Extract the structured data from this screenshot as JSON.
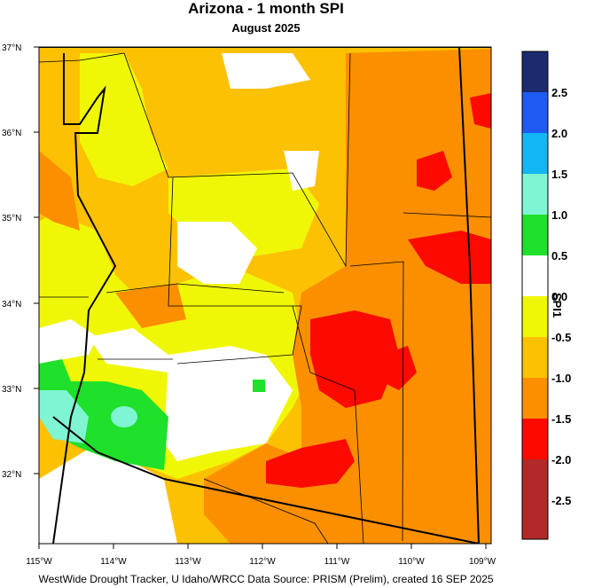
{
  "title": "Arizona - 1 month SPI",
  "subtitle": "August 2025",
  "footer": "WestWide Drought Tracker, U Idaho/WRCC Data Source: PRISM (Prelim), created 16 SEP 2025",
  "colorbar": {
    "label": "SPI1",
    "ticks": [
      "2.5",
      "2.0",
      "1.5",
      "1.0",
      "0.5",
      "0.0",
      "-0.5",
      "-1.0",
      "-1.5",
      "-2.0",
      "-2.5"
    ],
    "colors": [
      "#1c2a6e",
      "#1f5bf0",
      "#12b6f2",
      "#7ff5d4",
      "#1fe02a",
      "#ffffff",
      "#f0f706",
      "#fcc102",
      "#fb8f00",
      "#fb0a00",
      "#b02a2a"
    ]
  },
  "axes": {
    "lat_labels": [
      "37°N",
      "36°N",
      "35°N",
      "34°N",
      "33°N",
      "32°N"
    ],
    "lon_labels": [
      "115°W",
      "114°W",
      "113°W",
      "112°W",
      "111°W",
      "110°W",
      "109°W"
    ]
  }
}
